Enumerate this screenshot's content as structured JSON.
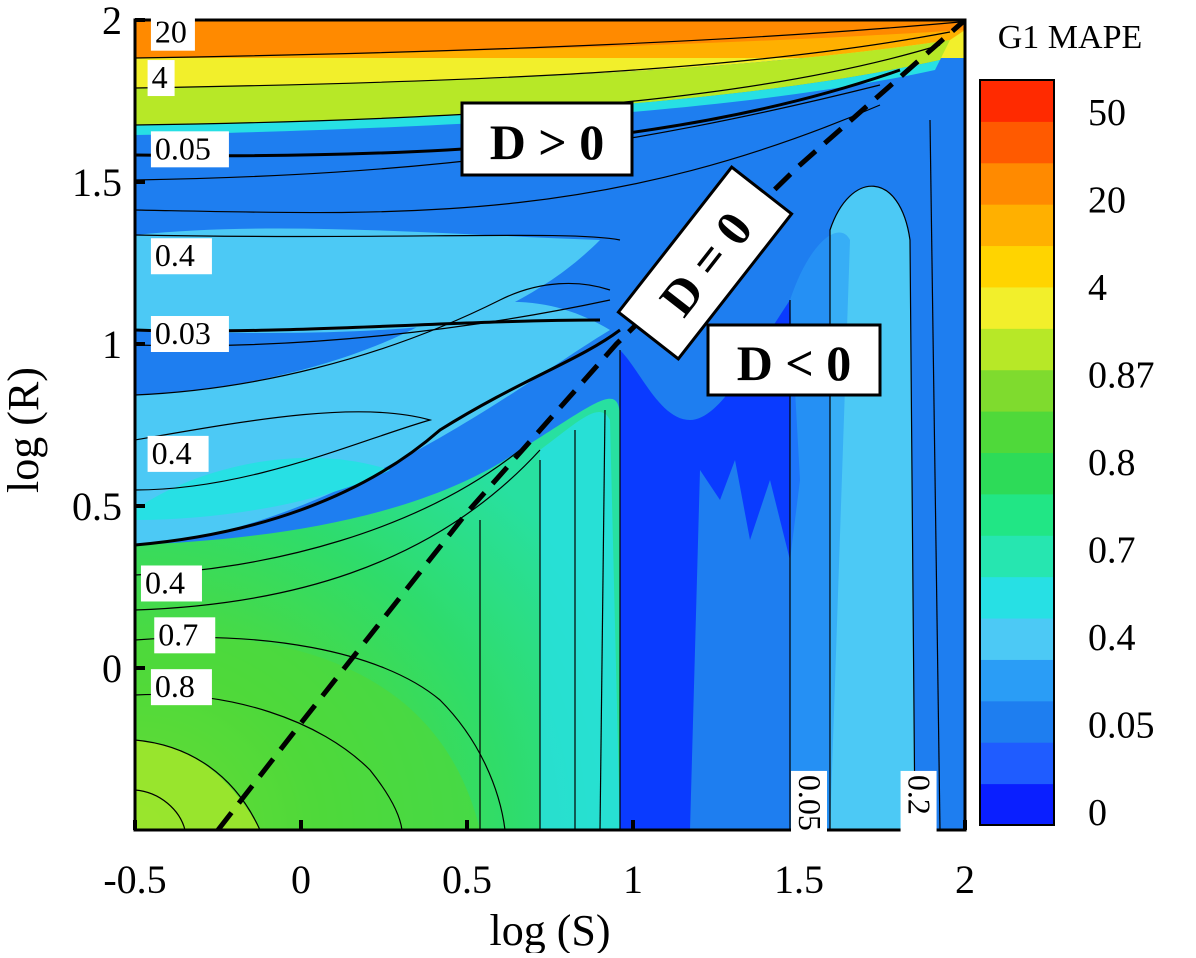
{
  "chart_data": {
    "type": "heatmap",
    "title": "",
    "xlabel": "log (S)",
    "ylabel": "log (R)",
    "xlim": [
      -0.5,
      2
    ],
    "ylim": [
      -0.5,
      2
    ],
    "x_ticks": [
      -0.5,
      0,
      0.5,
      1,
      1.5,
      2
    ],
    "y_ticks": [
      0,
      0.5,
      1,
      1.5,
      2
    ],
    "x_tick_labels": [
      "-0.5",
      "0",
      "0.5",
      "1",
      "1.5",
      "2"
    ],
    "y_tick_labels": [
      "0",
      "0.5",
      "1",
      "1.5",
      "2"
    ],
    "colorbar": {
      "title": "G1 MAPE",
      "levels": [
        "0",
        "0.05",
        "0.4",
        "0.7",
        "0.8",
        "0.87",
        "4",
        "20",
        "50"
      ],
      "colors": [
        "#0a1fff",
        "#1f5cff",
        "#1e7ef0",
        "#2a9df6",
        "#4cc9f5",
        "#27e0e4",
        "#26e6b0",
        "#21e685",
        "#2ddb58",
        "#4fd93a",
        "#7fdb2e",
        "#b7e827",
        "#f2ef2b",
        "#ffd400",
        "#ffb000",
        "#ff8a00",
        "#ff5a00",
        "#ff2a00"
      ]
    },
    "boundary": {
      "label": "D = 0",
      "points": [
        [
          -0.25,
          -0.5
        ],
        [
          0.0,
          -0.17
        ],
        [
          0.5,
          0.48
        ],
        [
          0.95,
          1.0
        ],
        [
          1.5,
          1.55
        ],
        [
          2.0,
          2.0
        ]
      ]
    },
    "region_labels": [
      "D > 0",
      "D = 0",
      "D < 0"
    ],
    "contour_labels": [
      {
        "text": "20",
        "x": -0.44,
        "y": 1.93
      },
      {
        "text": "4",
        "x": -0.45,
        "y": 1.79
      },
      {
        "text": "0.05",
        "x": -0.44,
        "y": 1.57
      },
      {
        "text": "0.4",
        "x": -0.44,
        "y": 1.24
      },
      {
        "text": "0.03",
        "x": -0.44,
        "y": 1.0
      },
      {
        "text": "0.4",
        "x": -0.45,
        "y": 0.63
      },
      {
        "text": "0.4",
        "x": -0.47,
        "y": 0.23
      },
      {
        "text": "0.7",
        "x": -0.43,
        "y": 0.07
      },
      {
        "text": "0.8",
        "x": -0.44,
        "y": -0.09
      },
      {
        "text": "0.05",
        "x": 1.5,
        "y": -0.33
      },
      {
        "text": "0.2",
        "x": 1.83,
        "y": -0.33
      }
    ],
    "bands": [
      {
        "name": "upper-orange",
        "ymin": 1.9,
        "ymax": 2.0,
        "color": "#ff8a00"
      },
      {
        "name": "upper-amber",
        "ymin": 1.85,
        "ymax": 1.9,
        "color": "#ffb000"
      },
      {
        "name": "upper-yellow",
        "ymin": 1.79,
        "ymax": 1.85,
        "color": "#f2ef2b"
      },
      {
        "name": "upper-lime",
        "ymin": 1.71,
        "ymax": 1.79,
        "color": "#b7e827"
      },
      {
        "name": "upper-blue",
        "ymin": 1.58,
        "ymax": 1.7,
        "color": "#1e7ef0"
      },
      {
        "name": "mid-cyan",
        "ymin": 1.1,
        "ymax": 1.35,
        "color": "#4cc9f5"
      },
      {
        "name": "lower-cyan",
        "ymin": 0.4,
        "ymax": 0.82,
        "color": "#4cc9f5"
      },
      {
        "name": "lower-teal",
        "ymin": 0.15,
        "ymax": 0.4,
        "color": "#27e0e4"
      }
    ]
  }
}
